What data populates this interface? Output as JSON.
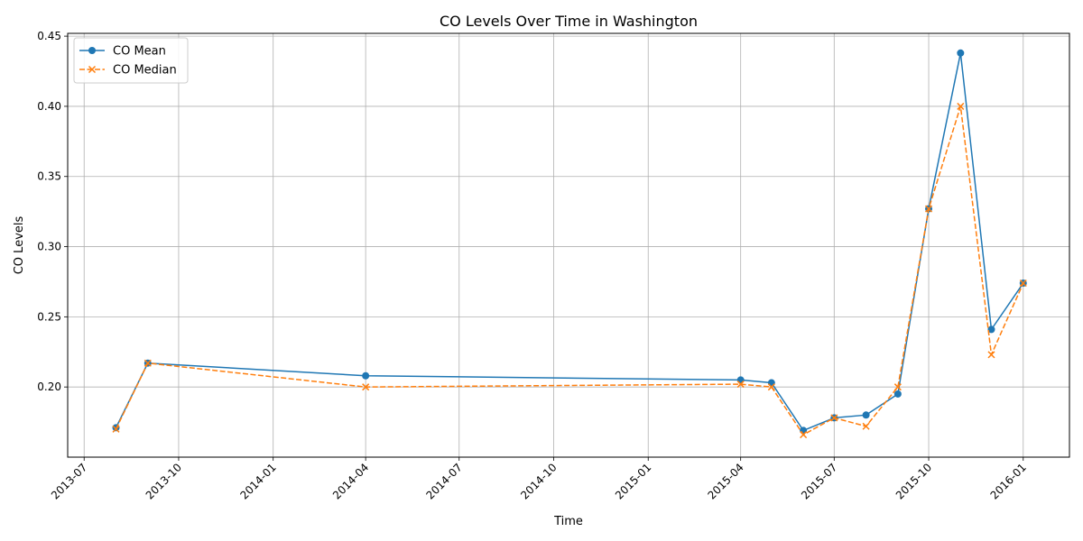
{
  "chart_data": {
    "type": "line",
    "title": "CO Levels Over Time in Washington",
    "xlabel": "Time",
    "ylabel": "CO Levels",
    "x_is_date": true,
    "xlim": [
      "2013-06-15",
      "2016-02-15"
    ],
    "ylim": [
      0.15,
      0.452
    ],
    "x_ticks": [
      "2013-07",
      "2013-10",
      "2014-01",
      "2014-04",
      "2014-07",
      "2014-10",
      "2015-01",
      "2015-04",
      "2015-07",
      "2015-10",
      "2016-01"
    ],
    "y_ticks": [
      "0.20",
      "0.25",
      "0.30",
      "0.35",
      "0.40",
      "0.45"
    ],
    "grid": true,
    "legend_position": "top-left",
    "x": [
      "2013-08-01",
      "2013-09-01",
      "2014-04-01",
      "2015-04-01",
      "2015-05-01",
      "2015-06-01",
      "2015-07-01",
      "2015-08-01",
      "2015-09-01",
      "2015-10-01",
      "2015-11-01",
      "2015-12-01",
      "2016-01-01"
    ],
    "series": [
      {
        "name": "CO Mean",
        "color": "#1f77b4",
        "line_style": "solid",
        "marker": "circle",
        "values": [
          0.171,
          0.217,
          0.208,
          0.205,
          0.203,
          0.169,
          0.178,
          0.18,
          0.195,
          0.327,
          0.438,
          0.241,
          0.274
        ]
      },
      {
        "name": "CO Median",
        "color": "#ff7f0e",
        "line_style": "dashed",
        "marker": "x",
        "values": [
          0.17,
          0.217,
          0.2,
          0.202,
          0.2,
          0.166,
          0.178,
          0.172,
          0.2,
          0.327,
          0.4,
          0.223,
          0.274
        ]
      }
    ]
  }
}
